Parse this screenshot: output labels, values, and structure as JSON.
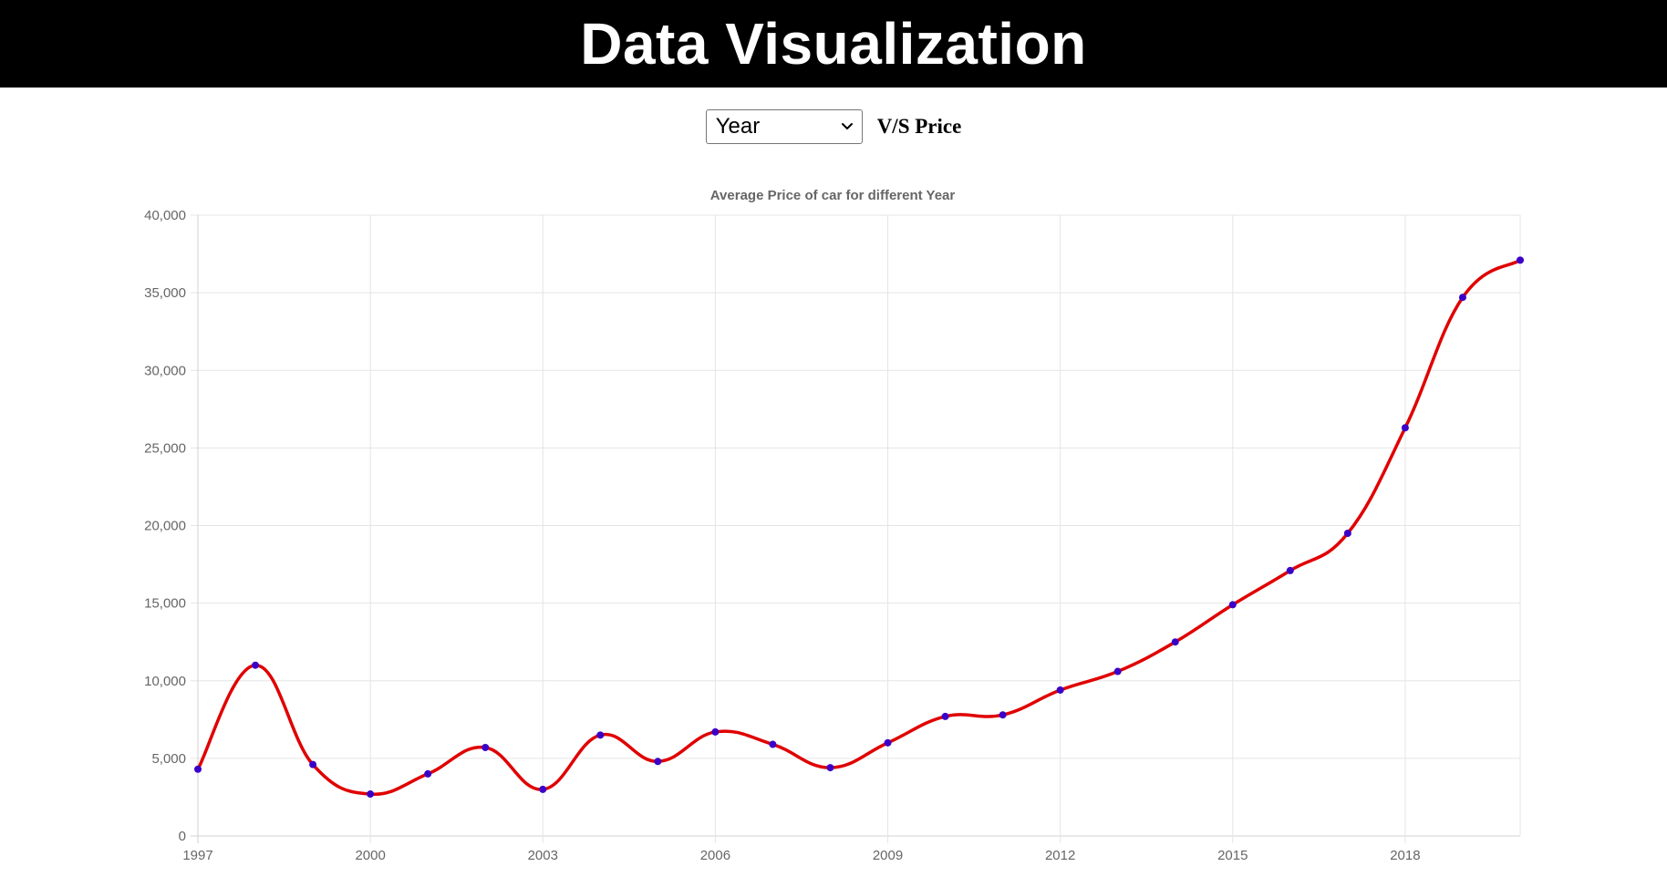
{
  "header": {
    "title": "Data Visualization"
  },
  "controls": {
    "selected_axis": "Year",
    "vs_label": "V/S Price"
  },
  "colors": {
    "line": "#e00000",
    "point": "#3a00c8",
    "header_bg": "#000000"
  },
  "chart_data": {
    "type": "line",
    "title": "Average Price of car for different Year",
    "xlabel": "",
    "ylabel": "",
    "x": [
      1997,
      1998,
      1999,
      2000,
      2001,
      2002,
      2003,
      2004,
      2005,
      2006,
      2007,
      2008,
      2009,
      2010,
      2011,
      2012,
      2013,
      2014,
      2015,
      2016,
      2017,
      2018,
      2019,
      2020
    ],
    "series": [
      {
        "values": [
          4300,
          11000,
          4600,
          2700,
          4000,
          5700,
          3000,
          6500,
          4800,
          6700,
          5900,
          4400,
          6000,
          7700,
          7800,
          9400,
          10600,
          12500,
          14900,
          17100,
          19500,
          26300,
          34700,
          37100
        ]
      }
    ],
    "xticks": [
      "1997",
      "2000",
      "2003",
      "2006",
      "2009",
      "2012",
      "2015",
      "2018"
    ],
    "yticks": [
      "0",
      "5,000",
      "10,000",
      "15,000",
      "20,000",
      "25,000",
      "30,000",
      "35,000",
      "40,000"
    ],
    "xlim": [
      1997,
      2020
    ],
    "ylim": [
      0,
      40000
    ],
    "grid": true,
    "legend": "none"
  }
}
